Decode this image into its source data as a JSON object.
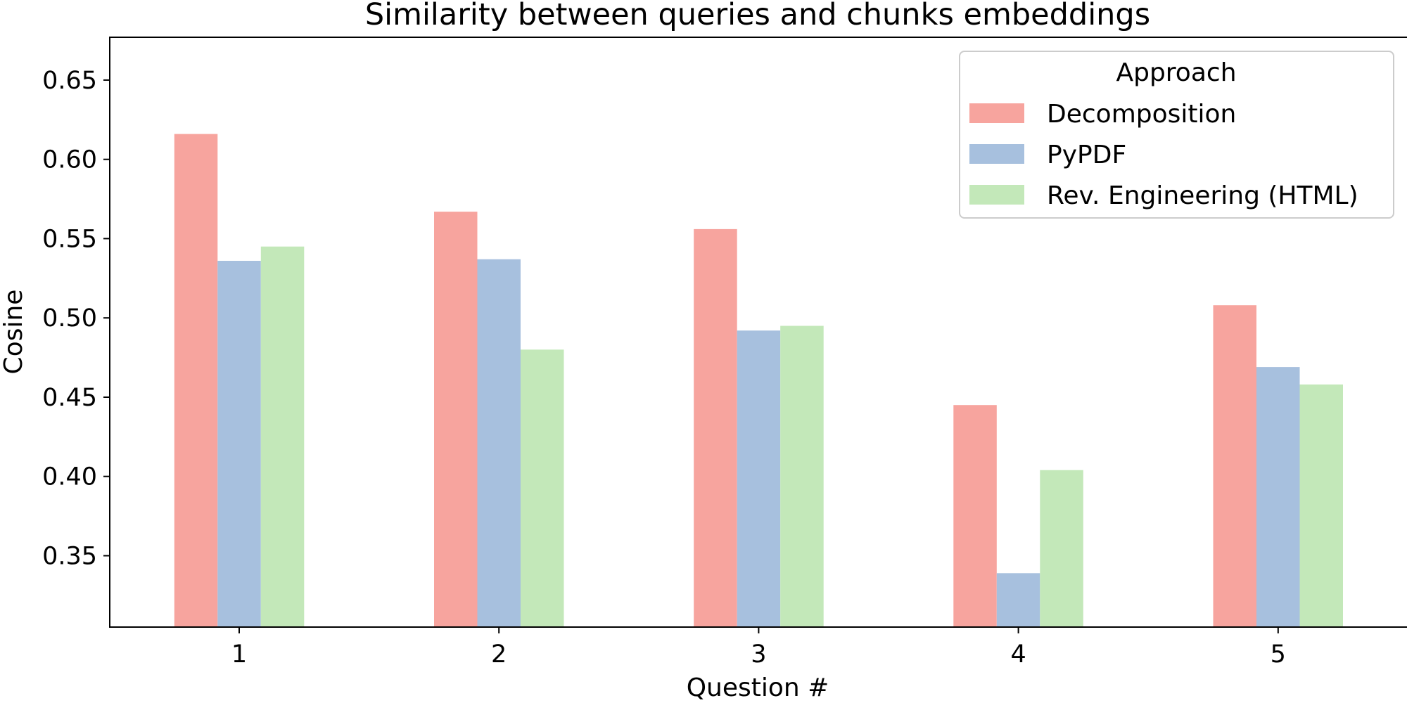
{
  "chart_data": {
    "type": "bar",
    "title": "Similarity between queries and chunks embeddings",
    "xlabel": "Question #",
    "ylabel": "Cosine",
    "categories": [
      "1",
      "2",
      "3",
      "4",
      "5"
    ],
    "series": [
      {
        "name": "Decomposition",
        "color": "#f7a49e",
        "values": [
          0.616,
          0.567,
          0.556,
          0.445,
          0.508
        ]
      },
      {
        "name": "PyPDF",
        "color": "#a7c0de",
        "values": [
          0.536,
          0.537,
          0.492,
          0.339,
          0.469
        ]
      },
      {
        "name": "Rev. Engineering (HTML)",
        "color": "#c3e8b9",
        "values": [
          0.545,
          0.48,
          0.495,
          0.404,
          0.458
        ]
      }
    ],
    "ylim": [
      0.305,
      0.677
    ],
    "yticks": [
      "0.35",
      "0.40",
      "0.45",
      "0.50",
      "0.55",
      "0.60",
      "0.65"
    ],
    "legend": {
      "title": "Approach",
      "position": "top-right"
    },
    "grid": false
  }
}
